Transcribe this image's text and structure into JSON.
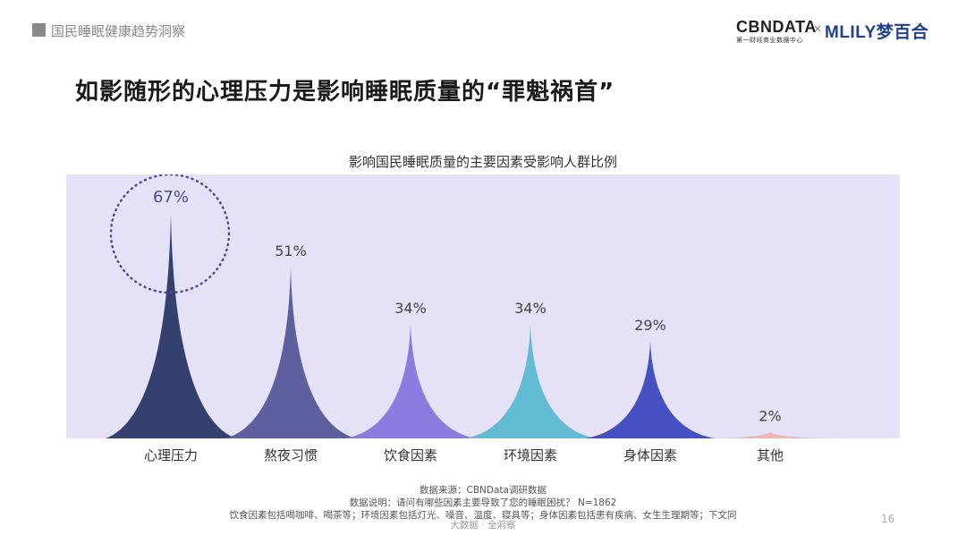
{
  "header": {
    "title": "国民睡眠健康趋势洞察"
  },
  "logos": {
    "cbndata": "CBNDATA",
    "cbndata_sub": "第一财经商业数据中心",
    "separator": "×",
    "partner": "MLILY梦百合"
  },
  "main_title": "如影随形的心理压力是影响睡眠质量的“罪魁祸首”",
  "chart_data": {
    "type": "area",
    "title": "影响国民睡眠质量的主要因素受影响人群比例",
    "categories": [
      "心理压力",
      "熬夜习惯",
      "饮食因素",
      "环境因素",
      "身体因素",
      "其他"
    ],
    "values": [
      67,
      51,
      34,
      34,
      29,
      2
    ],
    "value_labels": [
      "67%",
      "51%",
      "34%",
      "34%",
      "29%",
      "2%"
    ],
    "colors": [
      "#34406e",
      "#5e5f9f",
      "#8a7ddf",
      "#62bcd4",
      "#4450c3",
      "#f0b4ad"
    ],
    "background": "#e5e2f8",
    "highlight_color": "#4a4a9a",
    "ylim": [
      0,
      75
    ]
  },
  "footer": {
    "source": "数据来源：CBNData调研数据",
    "note": "数据说明：请问有哪些因素主要导致了您的睡眠困扰？ N=1862",
    "detail": "饮食因素包括喝咖啡、喝茶等；环境因素包括灯光、噪音、温度、寝具等；身体因素包括患有疾病、女生生理期等；下文同",
    "brand": "大数据 · 全洞察"
  },
  "page_number": "16"
}
